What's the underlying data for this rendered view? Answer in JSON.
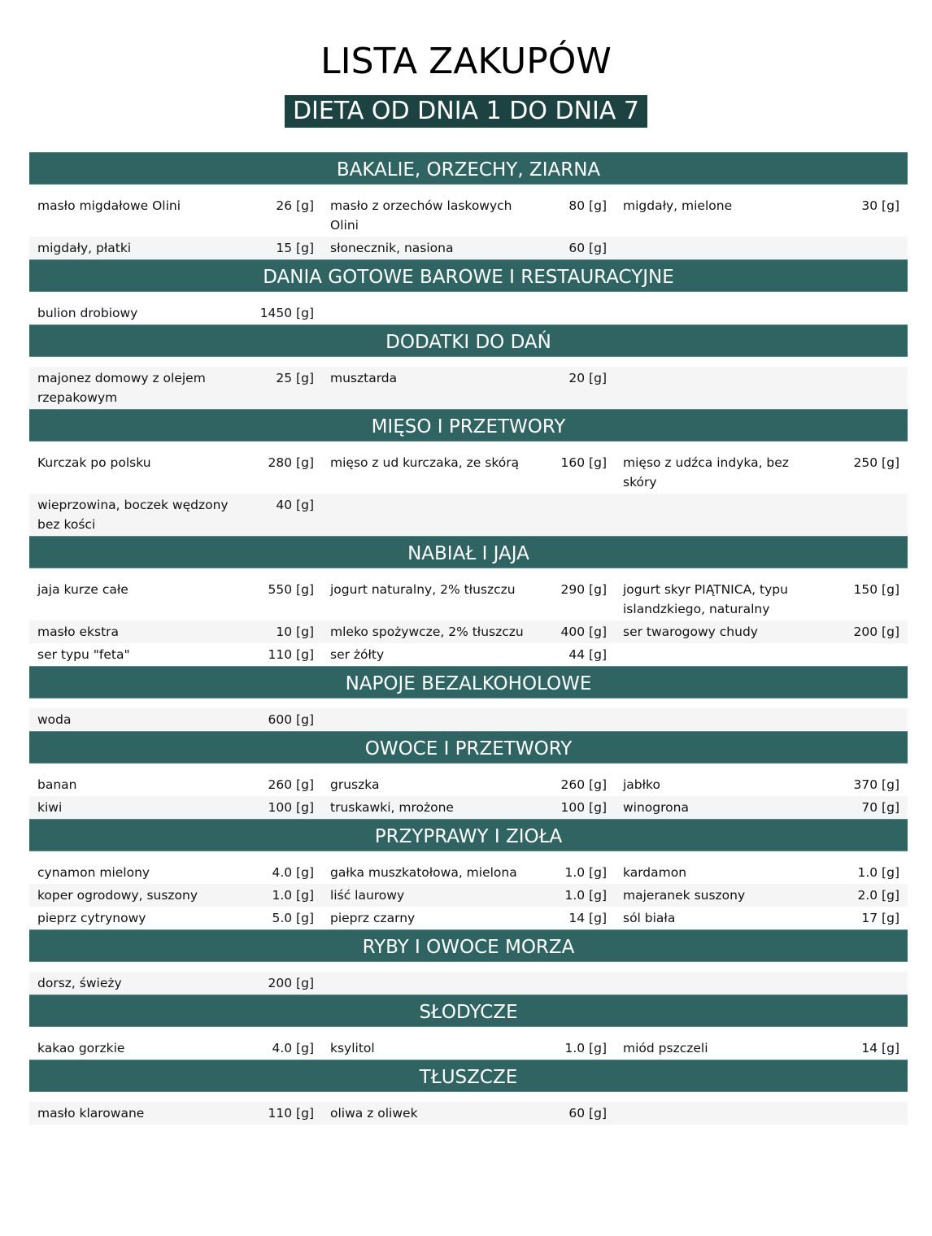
{
  "title": "LISTA ZAKUPÓW",
  "subtitle": "DIETA OD DNIA 1 DO DNIA 7",
  "colors": {
    "header_bg": "#2f6463",
    "subtitle_bg": "#1c4341",
    "row_alt": "#f5f5f5"
  },
  "sections": [
    {
      "title": "BAKALIE, ORZECHY, ZIARNA",
      "items": [
        {
          "name": "masło migdałowe Olini",
          "amount": "26 [g]"
        },
        {
          "name": "masło z orzechów laskowych Olini",
          "amount": "80 [g]"
        },
        {
          "name": "migdały, mielone",
          "amount": "30 [g]"
        },
        {
          "name": "migdały, płatki",
          "amount": "15 [g]"
        },
        {
          "name": "słonecznik, nasiona",
          "amount": "60 [g]"
        }
      ]
    },
    {
      "title": "DANIA GOTOWE BAROWE I RESTAURACYJNE",
      "items": [
        {
          "name": "bulion drobiowy",
          "amount": "1450 [g]"
        }
      ]
    },
    {
      "title": "DODATKI DO DAŃ",
      "items": [
        {
          "name": "majonez domowy z olejem rzepakowym",
          "amount": "25 [g]"
        },
        {
          "name": "musztarda",
          "amount": "20 [g]"
        }
      ]
    },
    {
      "title": "MIĘSO I PRZETWORY",
      "items": [
        {
          "name": "Kurczak po polsku",
          "amount": "280 [g]"
        },
        {
          "name": "mięso z ud kurczaka, ze skórą",
          "amount": "160 [g]"
        },
        {
          "name": "mięso z udźca indyka, bez skóry",
          "amount": "250 [g]"
        },
        {
          "name": "wieprzowina, boczek wędzony bez kości",
          "amount": "40 [g]"
        }
      ]
    },
    {
      "title": "NABIAŁ I JAJA",
      "items": [
        {
          "name": "jaja kurze całe",
          "amount": "550 [g]"
        },
        {
          "name": "jogurt naturalny, 2% tłuszczu",
          "amount": "290 [g]"
        },
        {
          "name": "jogurt skyr PIĄTNICA, typu islandzkiego, naturalny",
          "amount": "150 [g]"
        },
        {
          "name": "masło ekstra",
          "amount": "10 [g]"
        },
        {
          "name": "mleko spożywcze, 2% tłuszczu",
          "amount": "400 [g]"
        },
        {
          "name": "ser twarogowy chudy",
          "amount": "200 [g]"
        },
        {
          "name": "ser typu \"feta\"",
          "amount": "110 [g]"
        },
        {
          "name": "ser żółty",
          "amount": "44 [g]"
        }
      ]
    },
    {
      "title": "NAPOJE BEZALKOHOLOWE",
      "items": [
        {
          "name": "woda",
          "amount": "600 [g]"
        }
      ]
    },
    {
      "title": "OWOCE I PRZETWORY",
      "items": [
        {
          "name": "banan",
          "amount": "260 [g]"
        },
        {
          "name": "gruszka",
          "amount": "260 [g]"
        },
        {
          "name": "jabłko",
          "amount": "370 [g]"
        },
        {
          "name": "kiwi",
          "amount": "100 [g]"
        },
        {
          "name": "truskawki, mrożone",
          "amount": "100 [g]"
        },
        {
          "name": "winogrona",
          "amount": "70 [g]"
        }
      ]
    },
    {
      "title": "PRZYPRAWY I ZIOŁA",
      "items": [
        {
          "name": "cynamon mielony",
          "amount": "4.0 [g]"
        },
        {
          "name": "gałka muszkatołowa, mielona",
          "amount": "1.0 [g]"
        },
        {
          "name": "kardamon",
          "amount": "1.0 [g]"
        },
        {
          "name": "koper ogrodowy, suszony",
          "amount": "1.0 [g]"
        },
        {
          "name": "liść laurowy",
          "amount": "1.0 [g]"
        },
        {
          "name": "majeranek suszony",
          "amount": "2.0 [g]"
        },
        {
          "name": "pieprz cytrynowy",
          "amount": "5.0 [g]"
        },
        {
          "name": "pieprz czarny",
          "amount": "14 [g]"
        },
        {
          "name": "sól biała",
          "amount": "17 [g]"
        }
      ]
    },
    {
      "title": "RYBY I OWOCE MORZA",
      "items": [
        {
          "name": "dorsz, świeży",
          "amount": "200 [g]"
        }
      ]
    },
    {
      "title": "SŁODYCZE",
      "items": [
        {
          "name": "kakao gorzkie",
          "amount": "4.0 [g]"
        },
        {
          "name": "ksylitol",
          "amount": "1.0 [g]"
        },
        {
          "name": "miód pszczeli",
          "amount": "14 [g]"
        }
      ]
    },
    {
      "title": "TŁUSZCZE",
      "items": [
        {
          "name": "masło klarowane",
          "amount": "110 [g]"
        },
        {
          "name": "oliwa z oliwek",
          "amount": "60 [g]"
        }
      ]
    }
  ]
}
